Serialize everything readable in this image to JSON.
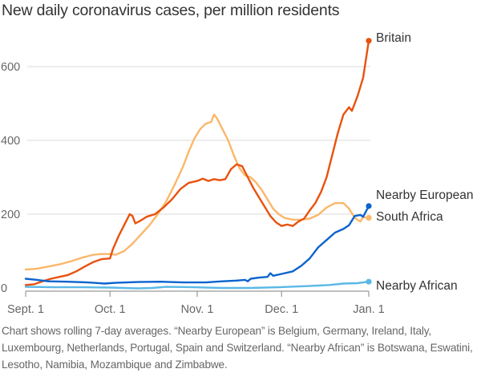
{
  "chart_data": {
    "type": "line",
    "title": "New daily coronavirus cases, per million residents",
    "xlabel": "",
    "ylabel": "",
    "x_start": "Sept. 1",
    "x_end": "Jan. 1",
    "x_unit": "days since Sept. 1",
    "xlim": [
      0,
      122
    ],
    "ylim": [
      0,
      600
    ],
    "grid": true,
    "x_ticks": [
      {
        "label": "Sept. 1",
        "day": 0
      },
      {
        "label": "Oct. 1",
        "day": 30
      },
      {
        "label": "Nov. 1",
        "day": 61
      },
      {
        "label": "Dec. 1",
        "day": 91
      },
      {
        "label": "Jan. 1",
        "day": 122
      }
    ],
    "y_ticks": [
      {
        "label": "0",
        "value": 0
      },
      {
        "label": "200",
        "value": 200
      },
      {
        "label": "400",
        "value": 400
      },
      {
        "label": "600",
        "value": 600
      }
    ],
    "legend_placement": "direct labels at line ends (right)",
    "series": [
      {
        "name": "Nearby European",
        "color": "#fbb76a",
        "points": [
          [
            0,
            50
          ],
          [
            4,
            52
          ],
          [
            8,
            58
          ],
          [
            12,
            64
          ],
          [
            16,
            72
          ],
          [
            20,
            82
          ],
          [
            24,
            90
          ],
          [
            27,
            92
          ],
          [
            30,
            92
          ],
          [
            32,
            90
          ],
          [
            35,
            100
          ],
          [
            38,
            120
          ],
          [
            41,
            145
          ],
          [
            44,
            170
          ],
          [
            47,
            200
          ],
          [
            50,
            235
          ],
          [
            53,
            280
          ],
          [
            56,
            330
          ],
          [
            58,
            370
          ],
          [
            60,
            405
          ],
          [
            62,
            430
          ],
          [
            64,
            445
          ],
          [
            66,
            450
          ],
          [
            67,
            470
          ],
          [
            68,
            460
          ],
          [
            70,
            430
          ],
          [
            72,
            400
          ],
          [
            74,
            360
          ],
          [
            76,
            325
          ],
          [
            78,
            305
          ],
          [
            80,
            300
          ],
          [
            82,
            285
          ],
          [
            84,
            265
          ],
          [
            86,
            240
          ],
          [
            88,
            215
          ],
          [
            90,
            200
          ],
          [
            92,
            190
          ],
          [
            95,
            185
          ],
          [
            98,
            185
          ],
          [
            101,
            188
          ],
          [
            104,
            198
          ],
          [
            107,
            218
          ],
          [
            110,
            230
          ],
          [
            113,
            230
          ],
          [
            115,
            215
          ],
          [
            117,
            190
          ],
          [
            119,
            180
          ],
          [
            120,
            192
          ],
          [
            122,
            190
          ]
        ]
      },
      {
        "name": "Britain",
        "color": "#e8520e",
        "points": [
          [
            0,
            8
          ],
          [
            3,
            10
          ],
          [
            6,
            18
          ],
          [
            9,
            25
          ],
          [
            12,
            30
          ],
          [
            15,
            35
          ],
          [
            18,
            45
          ],
          [
            21,
            58
          ],
          [
            24,
            70
          ],
          [
            27,
            78
          ],
          [
            30,
            80
          ],
          [
            31,
            105
          ],
          [
            33,
            140
          ],
          [
            35,
            170
          ],
          [
            37,
            200
          ],
          [
            38,
            195
          ],
          [
            39,
            175
          ],
          [
            41,
            183
          ],
          [
            43,
            193
          ],
          [
            46,
            200
          ],
          [
            49,
            218
          ],
          [
            52,
            240
          ],
          [
            55,
            268
          ],
          [
            58,
            285
          ],
          [
            61,
            290
          ],
          [
            63,
            296
          ],
          [
            65,
            290
          ],
          [
            67,
            295
          ],
          [
            69,
            292
          ],
          [
            71,
            295
          ],
          [
            73,
            322
          ],
          [
            75,
            335
          ],
          [
            77,
            330
          ],
          [
            79,
            300
          ],
          [
            81,
            270
          ],
          [
            83,
            245
          ],
          [
            85,
            220
          ],
          [
            87,
            195
          ],
          [
            89,
            178
          ],
          [
            91,
            168
          ],
          [
            93,
            172
          ],
          [
            95,
            168
          ],
          [
            97,
            180
          ],
          [
            99,
            188
          ],
          [
            101,
            210
          ],
          [
            103,
            230
          ],
          [
            105,
            260
          ],
          [
            107,
            300
          ],
          [
            109,
            360
          ],
          [
            111,
            420
          ],
          [
            113,
            470
          ],
          [
            115,
            490
          ],
          [
            116,
            480
          ],
          [
            118,
            520
          ],
          [
            120,
            570
          ],
          [
            122,
            670
          ]
        ]
      },
      {
        "name": "South Africa",
        "color": "#0b63ce",
        "points": [
          [
            0,
            25
          ],
          [
            4,
            22
          ],
          [
            8,
            18
          ],
          [
            15,
            17
          ],
          [
            22,
            15
          ],
          [
            28,
            12
          ],
          [
            32,
            14
          ],
          [
            40,
            16
          ],
          [
            48,
            17
          ],
          [
            56,
            15
          ],
          [
            64,
            15
          ],
          [
            70,
            18
          ],
          [
            75,
            20
          ],
          [
            78,
            22
          ],
          [
            79,
            18
          ],
          [
            80,
            25
          ],
          [
            83,
            28
          ],
          [
            86,
            30
          ],
          [
            87,
            40
          ],
          [
            88,
            33
          ],
          [
            91,
            38
          ],
          [
            95,
            45
          ],
          [
            98,
            60
          ],
          [
            101,
            80
          ],
          [
            104,
            110
          ],
          [
            107,
            130
          ],
          [
            110,
            150
          ],
          [
            113,
            160
          ],
          [
            115,
            170
          ],
          [
            117,
            195
          ],
          [
            119,
            198
          ],
          [
            120,
            193
          ],
          [
            122,
            222
          ]
        ]
      },
      {
        "name": "Nearby African",
        "color": "#5ab8e6",
        "points": [
          [
            0,
            3
          ],
          [
            10,
            2
          ],
          [
            20,
            2
          ],
          [
            30,
            1
          ],
          [
            40,
            -1
          ],
          [
            45,
            0
          ],
          [
            50,
            3
          ],
          [
            60,
            2
          ],
          [
            70,
            0
          ],
          [
            80,
            0
          ],
          [
            90,
            2
          ],
          [
            100,
            5
          ],
          [
            108,
            8
          ],
          [
            113,
            12
          ],
          [
            118,
            13
          ],
          [
            120,
            15
          ],
          [
            122,
            17
          ]
        ]
      }
    ],
    "annotations": []
  },
  "footnote": "Chart shows rolling 7-day averages. “Nearby European” is Belgium, Germany, Ireland, Italy, Luxembourg, Netherlands, Portugal, Spain and Switzerland. “Nearby African” is Botswana, Eswatini, Lesotho, Namibia, Mozambique and Zimbabwe."
}
